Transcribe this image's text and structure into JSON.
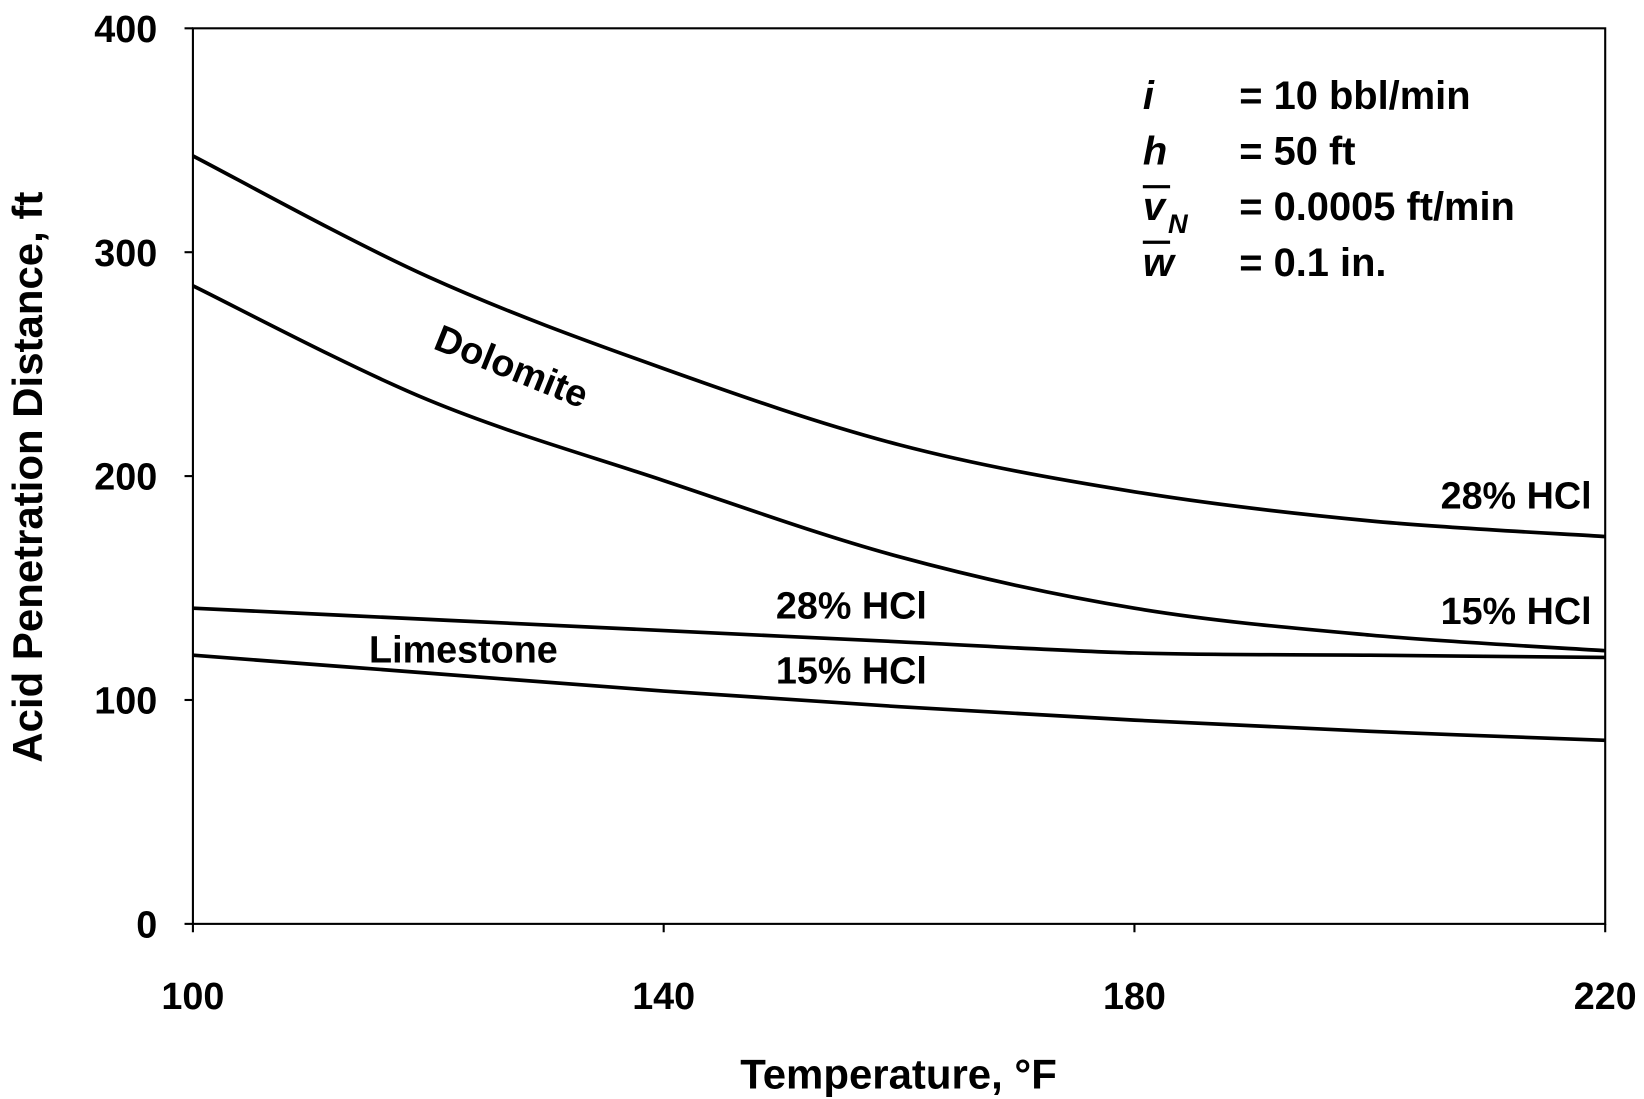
{
  "chart_data": {
    "type": "line",
    "title": "",
    "xlabel": "Temperature, °F",
    "ylabel": "Acid Penetration Distance, ft",
    "xlim": [
      100,
      220
    ],
    "ylim": [
      0,
      400
    ],
    "xticks": [
      "100",
      "140",
      "180",
      "220"
    ],
    "yticks": [
      "0",
      "100",
      "200",
      "300",
      "400"
    ],
    "grid": false,
    "x": [
      100,
      120,
      140,
      160,
      180,
      200,
      220
    ],
    "series": [
      {
        "name": "Dolomite 28% HCl",
        "label": "28% HCl",
        "values": [
          343,
          289,
          248,
          214,
          193,
          180,
          173
        ]
      },
      {
        "name": "Dolomite 15% HCl",
        "label": "15% HCl",
        "values": [
          285,
          234,
          198,
          164,
          141,
          129,
          122
        ]
      },
      {
        "name": "Limestone 28% HCl",
        "label": "28% HCl",
        "values": [
          141,
          136,
          131,
          126,
          121,
          120,
          119
        ]
      },
      {
        "name": "Limestone 15% HCl",
        "label": "15% HCl",
        "values": [
          120,
          112,
          104,
          97,
          91,
          86,
          82
        ]
      }
    ],
    "annotations": {
      "dolomite": "Dolomite",
      "limestone": "Limestone"
    },
    "parameters": [
      {
        "symbol": "i",
        "overbar": false,
        "subscript": "",
        "value": "= 10 bbl/min"
      },
      {
        "symbol": "h",
        "overbar": false,
        "subscript": "",
        "value": "= 50 ft"
      },
      {
        "symbol": "v",
        "overbar": true,
        "subscript": "N",
        "value": "= 0.0005 ft/min"
      },
      {
        "symbol": "w",
        "overbar": true,
        "subscript": "",
        "value": "= 0.1 in."
      }
    ],
    "line_color": "#000000"
  }
}
